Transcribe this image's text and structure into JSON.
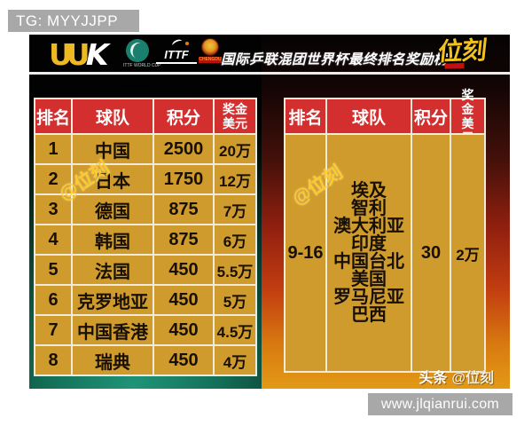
{
  "top_bar": {
    "tg_label": "TG: MYYJJPP"
  },
  "header": {
    "uuk_logo_yellow": "UU",
    "uuk_logo_white": "K",
    "worldcup_caption": "ITTF WORLD CUP",
    "ittf_logo": "ITTF",
    "chengdu_caption": "CHENGDU",
    "title": "国际乒联混团世界杯最终排名奖励榜",
    "brand_logo": "位刻"
  },
  "watermark": {
    "text": "@位刻"
  },
  "left_table": {
    "headers": [
      "排名",
      "球队",
      "积分",
      "奖金美元"
    ],
    "rows": [
      {
        "rank": "1",
        "team": "中国",
        "points": "2500",
        "prize": "20万"
      },
      {
        "rank": "2",
        "team": "日本",
        "points": "1750",
        "prize": "12万"
      },
      {
        "rank": "3",
        "team": "德国",
        "points": "875",
        "prize": "7万"
      },
      {
        "rank": "4",
        "team": "韩国",
        "points": "875",
        "prize": "6万"
      },
      {
        "rank": "5",
        "team": "法国",
        "points": "450",
        "prize": "5.5万"
      },
      {
        "rank": "6",
        "team": "克罗地亚",
        "points": "450",
        "prize": "5万"
      },
      {
        "rank": "7",
        "team": "中国香港",
        "points": "450",
        "prize": "4.5万"
      },
      {
        "rank": "8",
        "team": "瑞典",
        "points": "450",
        "prize": "4万"
      }
    ]
  },
  "right_table": {
    "headers": [
      "排名",
      "球队",
      "积分",
      "奖金美元"
    ],
    "rank": "9-16",
    "teams": [
      "埃及",
      "智利",
      "澳大利亚",
      "印度",
      "中国台北",
      "美国",
      "罗马尼亚",
      "巴西"
    ],
    "points": "30",
    "prize": "2万"
  },
  "footer": {
    "credit_prefix": "头条",
    "credit_handle": "@位刻",
    "url": "www.jlqianrui.com"
  },
  "colors": {
    "header_red": "#d32f2f",
    "cell_gold": "#cf9b2d",
    "border_cream": "#f2ead8",
    "brand_yellow": "#f3c11c",
    "teal_panel": "#147058",
    "orange_panel": "#c23d10",
    "gray_bar": "#a8a8a8"
  }
}
